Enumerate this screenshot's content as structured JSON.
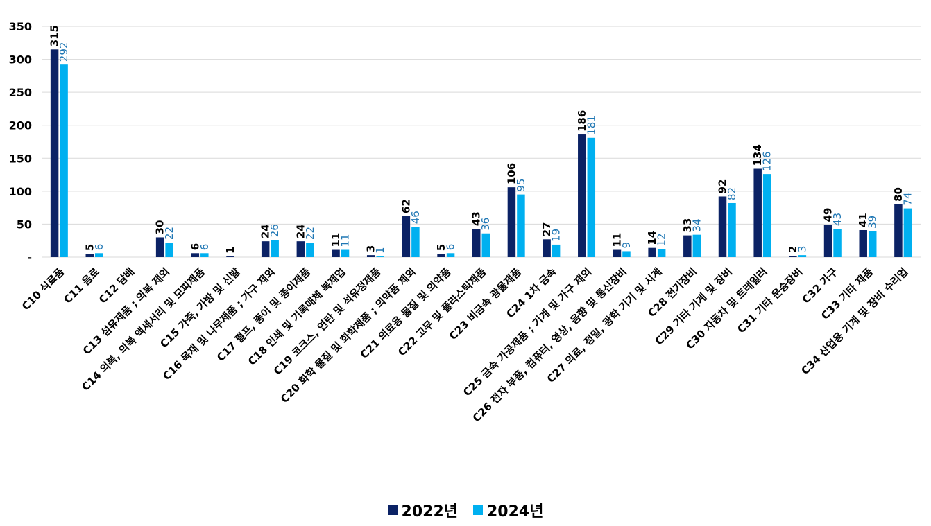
{
  "chart_data": {
    "type": "bar",
    "title": "",
    "xlabel": "",
    "ylabel": "",
    "ylim": [
      0,
      350
    ],
    "yticks": [
      0,
      50,
      100,
      150,
      200,
      250,
      300,
      350
    ],
    "ytick_labels": [
      "-",
      "50",
      "100",
      "150",
      "200",
      "250",
      "300",
      "350"
    ],
    "grid": true,
    "legend_position": "bottom",
    "categories": [
      "C10 식료품",
      "C11 음료",
      "C12 담배",
      "C13 섬유제품 ; 의복 제외",
      "C14 의복, 의복 액세서리 및 모피제품",
      "C15 가죽, 가방 및 신발",
      "C16 목재 및 나무제품 ; 가구 제외",
      "C17 펄프, 종이 및 종이제품",
      "C18 인쇄 및 기록매체 복제업",
      "C19 코크스, 연탄 및 석유정제품",
      "C20 화학 물질 및 화학제품 ; 의약품 제외",
      "C21 의료용 물질 및 의약품",
      "C22 고무 및 플라스틱제품",
      "C23 비금속 광물제품",
      "C24 1차 금속",
      "C25 금속 가공제품 ; 기계 및 가구 제외",
      "C26 전자 부품, 컴퓨터, 영상, 음향 및 통신장비",
      "C27 의료, 정밀, 광학 기기 및 시계",
      "C28 전기장비",
      "C29 기타 기계 및 장비",
      "C30 자동차 및 트레일러",
      "C31 기타 운송장비",
      "C32 가구",
      "C33 기타 제품",
      "C34 산업용 기계 및 장비 수리업"
    ],
    "series": [
      {
        "name": "2022년",
        "color": "#0b2265",
        "values": [
          315,
          5,
          null,
          30,
          6,
          1,
          24,
          24,
          11,
          3,
          62,
          5,
          43,
          106,
          27,
          186,
          11,
          14,
          33,
          92,
          134,
          2,
          49,
          41,
          80
        ]
      },
      {
        "name": "2024년",
        "color": "#00b0f0",
        "label_color": "#1f77b4",
        "values": [
          292,
          6,
          null,
          22,
          6,
          null,
          26,
          22,
          11,
          1,
          46,
          6,
          36,
          95,
          19,
          181,
          9,
          12,
          34,
          82,
          126,
          3,
          43,
          39,
          74
        ]
      }
    ]
  }
}
